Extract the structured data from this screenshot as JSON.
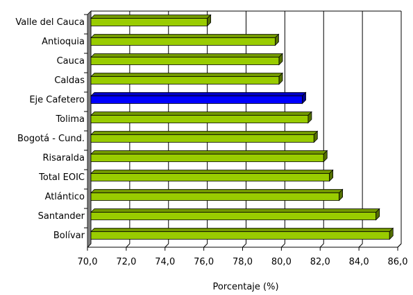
{
  "chart_data": {
    "type": "bar",
    "orientation": "horizontal",
    "categories": [
      "Valle del Cauca",
      "Antioquia",
      "Cauca",
      "Caldas",
      "Eje Cafetero",
      "Tolima",
      "Bogotá - Cund.",
      "Risaralda",
      "Total EOIC",
      "Atlántico",
      "Santander",
      "Bolívar"
    ],
    "values": [
      76.0,
      79.5,
      79.7,
      79.7,
      80.9,
      81.2,
      81.5,
      82.0,
      82.3,
      82.8,
      84.7,
      85.4
    ],
    "xlabel": "Porcentaje (%)",
    "ylabel": "",
    "xlim": [
      70,
      86
    ],
    "xticks": [
      "70,0",
      "72,0",
      "74,0",
      "76,0",
      "78,0",
      "80,0",
      "82,0",
      "84,0",
      "86,0"
    ],
    "grid": "vertical",
    "legend": "none",
    "colors": {
      "default": "#99cc00",
      "highlight": "#0000ff",
      "highlight_category": "Eje Cafetero",
      "wall": "#808080"
    }
  }
}
